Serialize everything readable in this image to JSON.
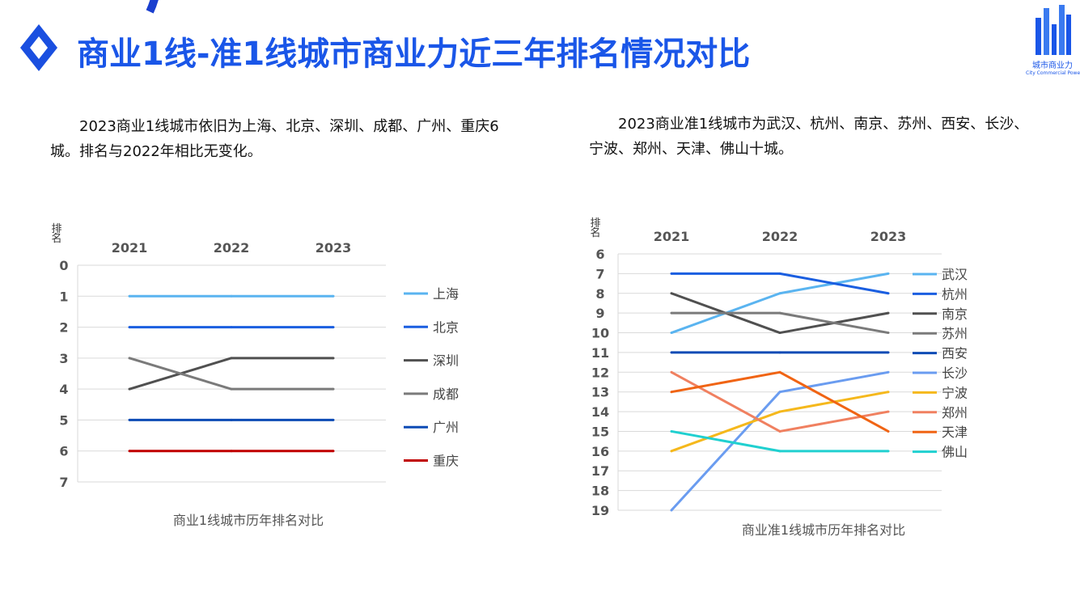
{
  "page": {
    "title": "商业1线-准1线城市商业力近三年排名情况对比",
    "logo_text": "城市商业力",
    "logo_sub": "City Commercial Power",
    "accent": "#1a56e8"
  },
  "descriptions": {
    "left": "2023商业1线城市依旧为上海、北京、深圳、成都、广州、重庆6城。排名与2022年相比无变化。",
    "right": "2023商业准1线城市为武汉、杭州、南京、苏州、西安、长沙、宁波、郑州、天津、佛山十城。"
  },
  "chart_data": [
    {
      "type": "line",
      "title": "商业1线城市历年排名对比",
      "ylabel": "排名",
      "x": [
        "2021",
        "2022",
        "2023"
      ],
      "ylim": [
        0,
        7
      ],
      "y_reversed": true,
      "legend": "right",
      "series": [
        {
          "name": "上海",
          "values": [
            1,
            1,
            1
          ],
          "color": "#5ab4f0"
        },
        {
          "name": "北京",
          "values": [
            2,
            2,
            2
          ],
          "color": "#1a5ee0"
        },
        {
          "name": "深圳",
          "values": [
            4,
            3,
            3
          ],
          "color": "#505050"
        },
        {
          "name": "成都",
          "values": [
            3,
            4,
            4
          ],
          "color": "#7a7a7a"
        },
        {
          "name": "广州",
          "values": [
            5,
            5,
            5
          ],
          "color": "#0d4bb5"
        },
        {
          "name": "重庆",
          "values": [
            6,
            6,
            6
          ],
          "color": "#c00000"
        }
      ]
    },
    {
      "type": "line",
      "title": "商业准1线城市历年排名对比",
      "ylabel": "排名",
      "x": [
        "2021",
        "2022",
        "2023"
      ],
      "ylim": [
        6,
        19
      ],
      "y_reversed": true,
      "legend": "right",
      "series": [
        {
          "name": "武汉",
          "values": [
            10,
            8,
            7
          ],
          "color": "#5ab4f0"
        },
        {
          "name": "杭州",
          "values": [
            7,
            7,
            8
          ],
          "color": "#1a5ee0"
        },
        {
          "name": "南京",
          "values": [
            8,
            10,
            9
          ],
          "color": "#505050"
        },
        {
          "name": "苏州",
          "values": [
            9,
            9,
            10
          ],
          "color": "#7a7a7a"
        },
        {
          "name": "西安",
          "values": [
            11,
            11,
            11
          ],
          "color": "#0d4bb5"
        },
        {
          "name": "长沙",
          "values": [
            19,
            13,
            12
          ],
          "color": "#6a9cf0"
        },
        {
          "name": "宁波",
          "values": [
            16,
            14,
            13
          ],
          "color": "#f5b81c"
        },
        {
          "name": "郑州",
          "values": [
            12,
            15,
            14
          ],
          "color": "#f08060"
        },
        {
          "name": "天津",
          "values": [
            13,
            12,
            15
          ],
          "color": "#f06414"
        },
        {
          "name": "佛山",
          "values": [
            15,
            16,
            16
          ],
          "color": "#20d0d0"
        }
      ]
    }
  ]
}
